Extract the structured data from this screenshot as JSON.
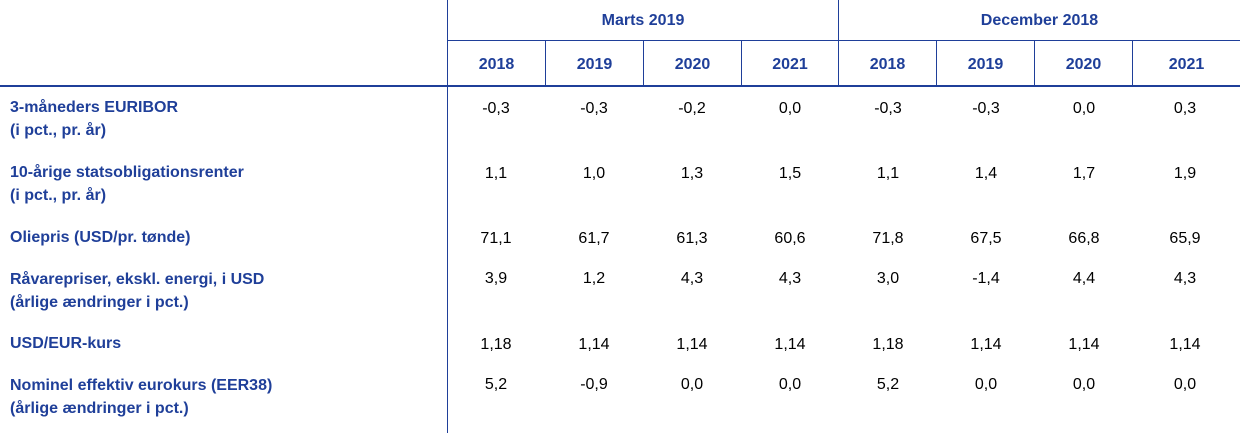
{
  "header": {
    "group1": "Marts 2019",
    "group2": "December 2018",
    "years": [
      "2018",
      "2019",
      "2020",
      "2021",
      "2018",
      "2019",
      "2020",
      "2021"
    ]
  },
  "rows": [
    {
      "label1": "3-måneders EURIBOR",
      "label2": "(i pct., pr. år)",
      "values": [
        "-0,3",
        "-0,3",
        "-0,2",
        "0,0",
        "-0,3",
        "-0,3",
        "0,0",
        "0,3"
      ]
    },
    {
      "label1": "10-årige statsobligationsrenter",
      "label2": "(i pct., pr. år)",
      "values": [
        "1,1",
        "1,0",
        "1,3",
        "1,5",
        "1,1",
        "1,4",
        "1,7",
        "1,9"
      ]
    },
    {
      "label1": "Oliepris (USD/pr. tønde)",
      "label2": "",
      "values": [
        "71,1",
        "61,7",
        "61,3",
        "60,6",
        "71,8",
        "67,5",
        "66,8",
        "65,9"
      ]
    },
    {
      "label1": "Råvarepriser, ekskl. energi, i USD",
      "label2": "(årlige ændringer i pct.)",
      "values": [
        "3,9",
        "1,2",
        "4,3",
        "4,3",
        "3,0",
        "-1,4",
        "4,4",
        "4,3"
      ]
    },
    {
      "label1": "USD/EUR-kurs",
      "label2": "",
      "values": [
        "1,18",
        "1,14",
        "1,14",
        "1,14",
        "1,18",
        "1,14",
        "1,14",
        "1,14"
      ]
    },
    {
      "label1": "Nominel effektiv eurokurs (EER38)",
      "label2": "(årlige ændringer i pct.)",
      "values": [
        "5,2",
        "-0,9",
        "0,0",
        "0,0",
        "5,2",
        "0,0",
        "0,0",
        "0,0"
      ]
    }
  ]
}
